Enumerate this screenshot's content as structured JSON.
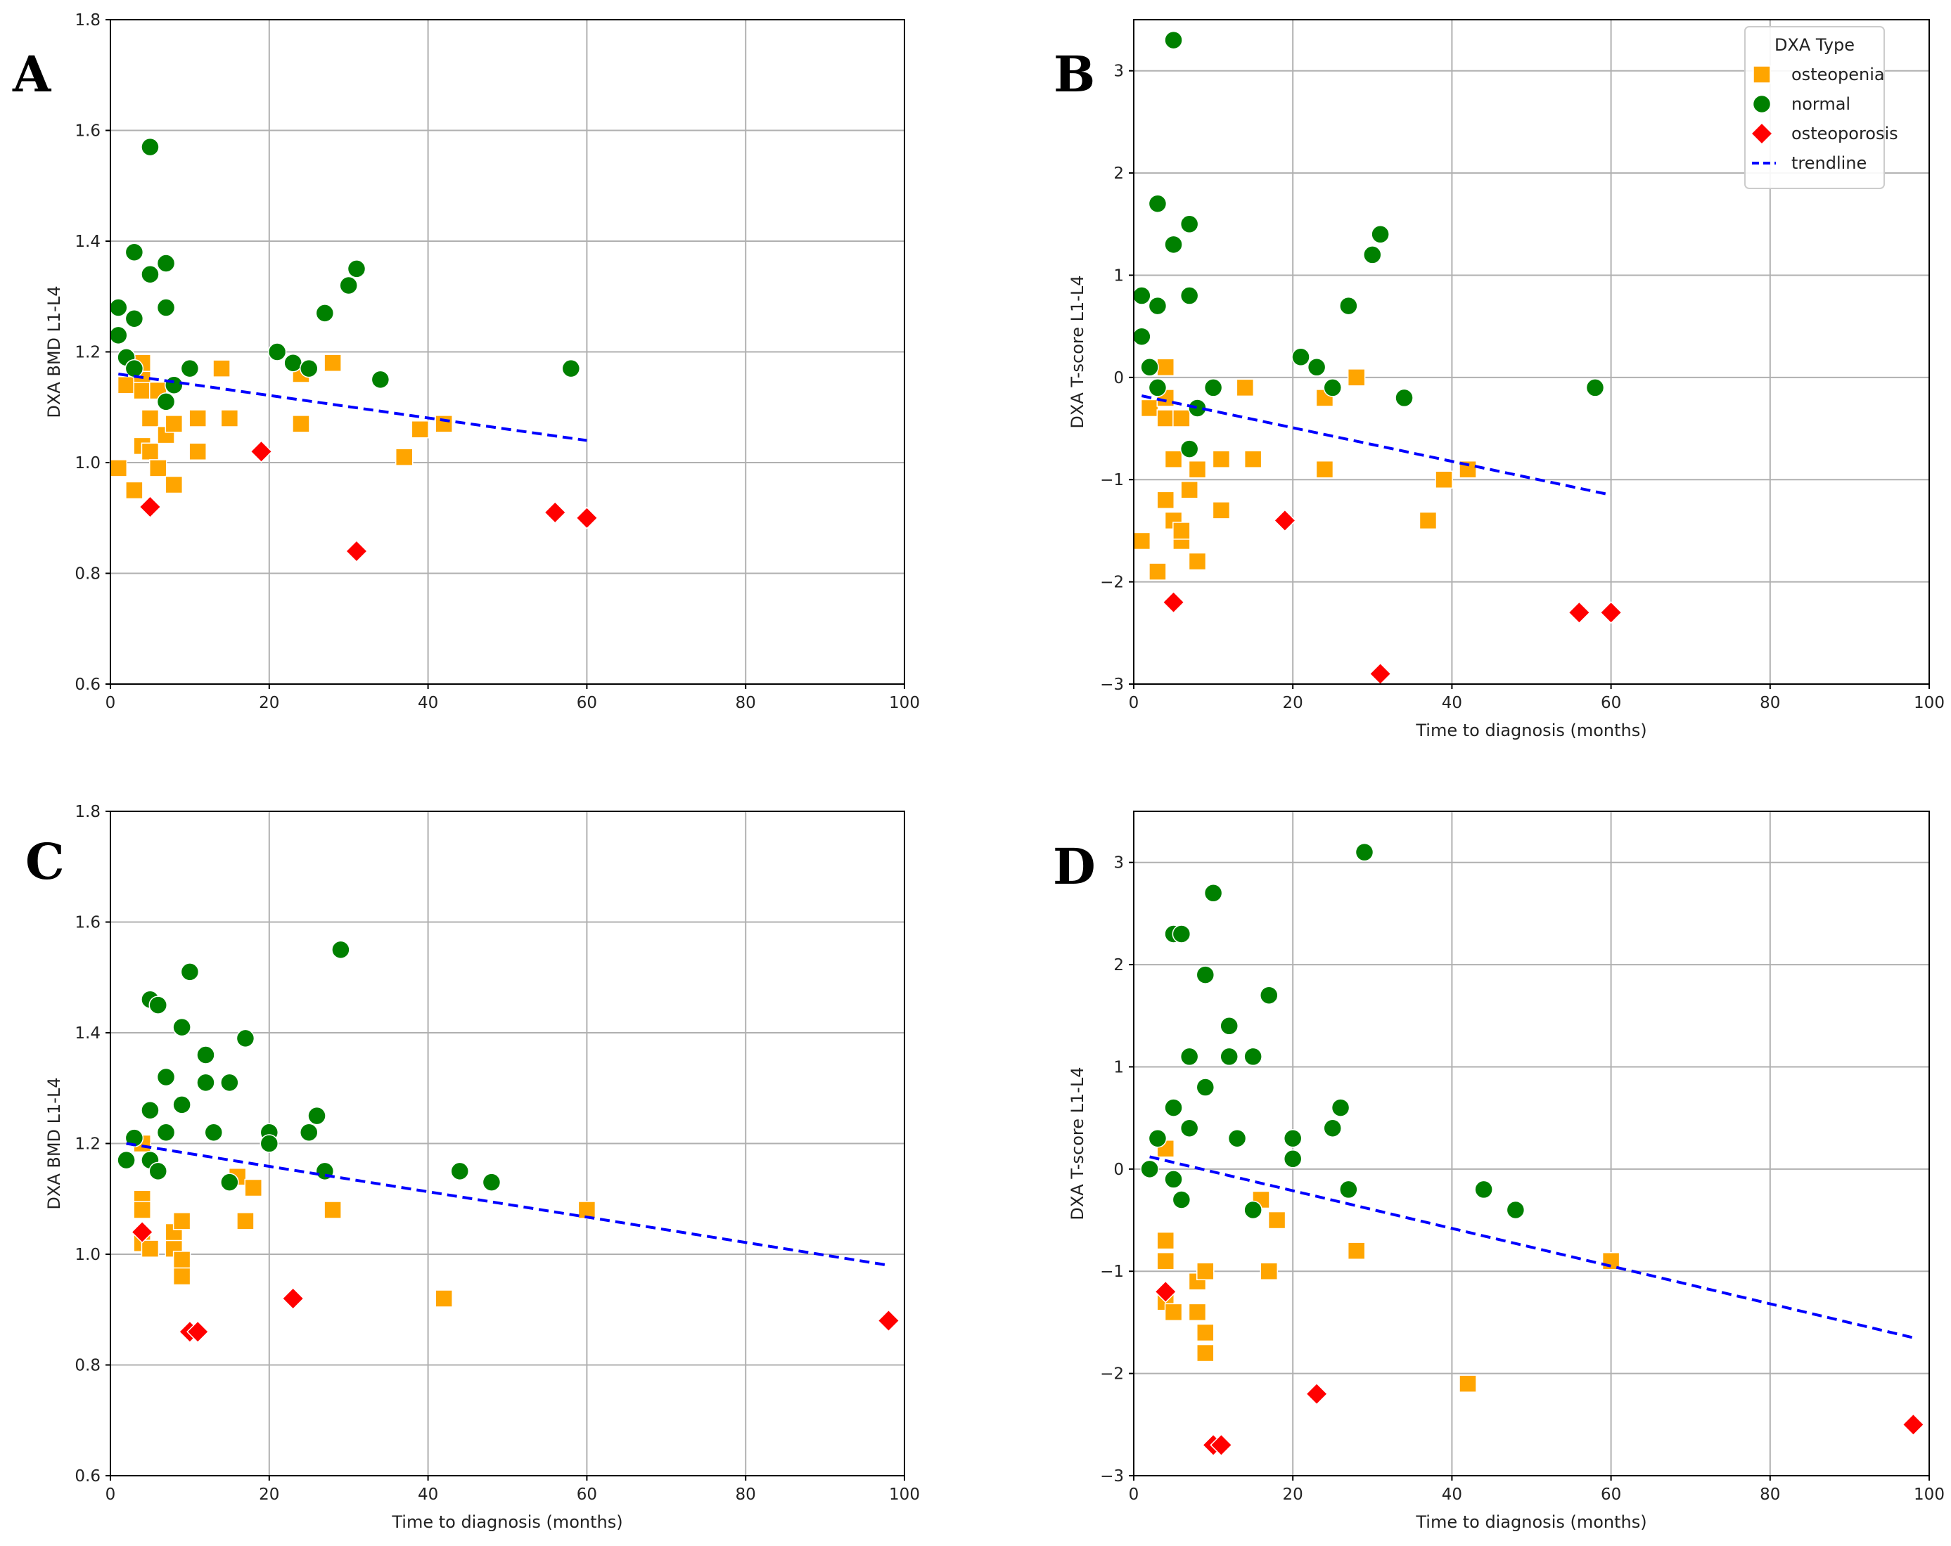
{
  "legend": {
    "title": "DXA Type",
    "entries": [
      {
        "label": "osteopenia",
        "marker": "square",
        "color": "#ffa500"
      },
      {
        "label": "normal",
        "marker": "circle",
        "color": "#008000"
      },
      {
        "label": "osteoporosis",
        "marker": "diamond",
        "color": "#ff0000"
      },
      {
        "label": "trendline",
        "marker": "dashed-line",
        "color": "#0000ff"
      }
    ]
  },
  "chart_data": [
    {
      "panel": "A",
      "type": "scatter",
      "xlabel": "",
      "ylabel": "DXA BMD L1-L4",
      "xlim": [
        0,
        100
      ],
      "ylim": [
        0.6,
        1.8
      ],
      "xticks": [
        "0",
        "20",
        "40",
        "60",
        "80",
        "100"
      ],
      "yticks": [
        "0.6",
        "0.8",
        "1.0",
        "1.2",
        "1.4",
        "1.6",
        "1.8"
      ],
      "grid": true,
      "series": [
        {
          "name": "osteopenia",
          "points": [
            [
              1,
              0.99
            ],
            [
              2,
              1.14
            ],
            [
              3,
              0.95
            ],
            [
              4,
              1.03
            ],
            [
              4,
              1.13
            ],
            [
              4,
              1.16
            ],
            [
              4,
              1.18
            ],
            [
              5,
              1.02
            ],
            [
              5,
              1.08
            ],
            [
              6,
              0.99
            ],
            [
              6,
              1.13
            ],
            [
              7,
              1.05
            ],
            [
              8,
              0.96
            ],
            [
              8,
              1.07
            ],
            [
              11,
              1.08
            ],
            [
              11,
              1.02
            ],
            [
              14,
              1.17
            ],
            [
              15,
              1.08
            ],
            [
              24,
              1.16
            ],
            [
              24,
              1.07
            ],
            [
              28,
              1.18
            ],
            [
              37,
              1.01
            ],
            [
              39,
              1.06
            ],
            [
              42,
              1.07
            ]
          ]
        },
        {
          "name": "normal",
          "points": [
            [
              1,
              1.23
            ],
            [
              1,
              1.28
            ],
            [
              2,
              1.19
            ],
            [
              3,
              1.17
            ],
            [
              3,
              1.26
            ],
            [
              3,
              1.38
            ],
            [
              5,
              1.34
            ],
            [
              5,
              1.57
            ],
            [
              7,
              1.36
            ],
            [
              7,
              1.28
            ],
            [
              7,
              1.11
            ],
            [
              8,
              1.14
            ],
            [
              10,
              1.17
            ],
            [
              21,
              1.2
            ],
            [
              23,
              1.18
            ],
            [
              25,
              1.17
            ],
            [
              27,
              1.27
            ],
            [
              30,
              1.32
            ],
            [
              31,
              1.35
            ],
            [
              34,
              1.15
            ],
            [
              58,
              1.17
            ]
          ]
        },
        {
          "name": "osteoporosis",
          "points": [
            [
              5,
              0.92
            ],
            [
              19,
              1.02
            ],
            [
              31,
              0.84
            ],
            [
              56,
              0.91
            ],
            [
              60,
              0.9
            ]
          ]
        }
      ],
      "trendline": {
        "x": [
          1,
          60
        ],
        "y": [
          1.16,
          1.04
        ]
      }
    },
    {
      "panel": "B",
      "type": "scatter",
      "xlabel": "Time to diagnosis (months)",
      "ylabel": "DXA T-score L1-L4",
      "xlim": [
        0,
        100
      ],
      "ylim": [
        -3,
        3.5
      ],
      "xticks": [
        "0",
        "20",
        "40",
        "60",
        "80",
        "100"
      ],
      "yticks": [
        "−3",
        "−2",
        "−1",
        "0",
        "1",
        "2",
        "3"
      ],
      "grid": true,
      "legend_position": "top-right",
      "series": [
        {
          "name": "osteopenia",
          "points": [
            [
              1,
              -1.6
            ],
            [
              2,
              -0.3
            ],
            [
              3,
              -1.9
            ],
            [
              4,
              -0.4
            ],
            [
              4,
              -0.2
            ],
            [
              4,
              -1.2
            ],
            [
              4,
              0.1
            ],
            [
              5,
              -0.8
            ],
            [
              5,
              -1.4
            ],
            [
              6,
              -1.6
            ],
            [
              6,
              -1.5
            ],
            [
              6,
              -0.4
            ],
            [
              7,
              -1.1
            ],
            [
              8,
              -0.9
            ],
            [
              8,
              -1.8
            ],
            [
              11,
              -0.8
            ],
            [
              11,
              -1.3
            ],
            [
              14,
              -0.1
            ],
            [
              15,
              -0.8
            ],
            [
              24,
              -0.2
            ],
            [
              24,
              -0.9
            ],
            [
              28,
              0.0
            ],
            [
              37,
              -1.4
            ],
            [
              39,
              -1.0
            ],
            [
              42,
              -0.9
            ]
          ]
        },
        {
          "name": "normal",
          "points": [
            [
              1,
              0.8
            ],
            [
              1,
              0.4
            ],
            [
              2,
              0.1
            ],
            [
              3,
              0.7
            ],
            [
              3,
              1.7
            ],
            [
              3,
              -0.1
            ],
            [
              5,
              1.3
            ],
            [
              5,
              3.3
            ],
            [
              7,
              0.8
            ],
            [
              7,
              1.5
            ],
            [
              7,
              -0.7
            ],
            [
              8,
              -0.3
            ],
            [
              10,
              -0.1
            ],
            [
              21,
              0.2
            ],
            [
              23,
              0.1
            ],
            [
              25,
              -0.1
            ],
            [
              27,
              0.7
            ],
            [
              30,
              1.2
            ],
            [
              31,
              1.4
            ],
            [
              34,
              -0.2
            ],
            [
              58,
              -0.1
            ]
          ]
        },
        {
          "name": "osteoporosis",
          "points": [
            [
              5,
              -2.2
            ],
            [
              19,
              -1.4
            ],
            [
              31,
              -2.9
            ],
            [
              56,
              -2.3
            ],
            [
              60,
              -2.3
            ]
          ]
        }
      ],
      "trendline": {
        "x": [
          1,
          60
        ],
        "y": [
          -0.18,
          -1.15
        ]
      }
    },
    {
      "panel": "C",
      "type": "scatter",
      "xlabel": "Time to diagnosis (months)",
      "ylabel": "DXA BMD L1-L4",
      "xlim": [
        0,
        100
      ],
      "ylim": [
        0.6,
        1.8
      ],
      "xticks": [
        "0",
        "20",
        "40",
        "60",
        "80",
        "100"
      ],
      "yticks": [
        "0.6",
        "0.8",
        "1.0",
        "1.2",
        "1.4",
        "1.6",
        "1.8"
      ],
      "grid": true,
      "series": [
        {
          "name": "osteopenia",
          "points": [
            [
              4,
              1.2
            ],
            [
              4,
              1.1
            ],
            [
              4,
              1.08
            ],
            [
              4,
              1.02
            ],
            [
              5,
              1.01
            ],
            [
              8,
              1.01
            ],
            [
              8,
              1.04
            ],
            [
              9,
              0.99
            ],
            [
              9,
              0.96
            ],
            [
              9,
              1.06
            ],
            [
              16,
              1.14
            ],
            [
              17,
              1.06
            ],
            [
              18,
              1.12
            ],
            [
              28,
              1.08
            ],
            [
              42,
              0.92
            ],
            [
              60,
              1.08
            ]
          ]
        },
        {
          "name": "normal",
          "points": [
            [
              2,
              1.17
            ],
            [
              3,
              1.21
            ],
            [
              5,
              1.46
            ],
            [
              5,
              1.26
            ],
            [
              5,
              1.17
            ],
            [
              6,
              1.45
            ],
            [
              6,
              1.15
            ],
            [
              7,
              1.32
            ],
            [
              7,
              1.22
            ],
            [
              9,
              1.41
            ],
            [
              9,
              1.27
            ],
            [
              10,
              1.51
            ],
            [
              12,
              1.36
            ],
            [
              12,
              1.31
            ],
            [
              13,
              1.22
            ],
            [
              15,
              1.31
            ],
            [
              15,
              1.13
            ],
            [
              17,
              1.39
            ],
            [
              20,
              1.22
            ],
            [
              20,
              1.2
            ],
            [
              25,
              1.22
            ],
            [
              26,
              1.25
            ],
            [
              27,
              1.15
            ],
            [
              29,
              1.55
            ],
            [
              44,
              1.15
            ],
            [
              48,
              1.13
            ]
          ]
        },
        {
          "name": "osteoporosis",
          "points": [
            [
              4,
              1.04
            ],
            [
              10,
              0.86
            ],
            [
              11,
              0.86
            ],
            [
              23,
              0.92
            ],
            [
              98,
              0.88
            ]
          ]
        }
      ],
      "trendline": {
        "x": [
          2,
          98
        ],
        "y": [
          1.2,
          0.98
        ]
      }
    },
    {
      "panel": "D",
      "type": "scatter",
      "xlabel": "Time to diagnosis (months)",
      "ylabel": "DXA T-score L1-L4",
      "xlim": [
        0,
        100
      ],
      "ylim": [
        -3,
        3.5
      ],
      "xticks": [
        "0",
        "20",
        "40",
        "60",
        "80",
        "100"
      ],
      "yticks": [
        "−3",
        "−2",
        "−1",
        "0",
        "1",
        "2",
        "3"
      ],
      "grid": true,
      "series": [
        {
          "name": "osteopenia",
          "points": [
            [
              4,
              0.2
            ],
            [
              4,
              -0.7
            ],
            [
              4,
              -0.9
            ],
            [
              4,
              -1.3
            ],
            [
              5,
              -1.4
            ],
            [
              8,
              -1.1
            ],
            [
              8,
              -1.4
            ],
            [
              9,
              -1.0
            ],
            [
              9,
              -1.6
            ],
            [
              9,
              -1.8
            ],
            [
              16,
              -0.3
            ],
            [
              17,
              -1.0
            ],
            [
              18,
              -0.5
            ],
            [
              28,
              -0.8
            ],
            [
              42,
              -2.1
            ],
            [
              60,
              -0.9
            ]
          ]
        },
        {
          "name": "normal",
          "points": [
            [
              2,
              0.0
            ],
            [
              3,
              0.3
            ],
            [
              5,
              2.3
            ],
            [
              5,
              0.6
            ],
            [
              5,
              -0.1
            ],
            [
              6,
              2.3
            ],
            [
              6,
              -0.3
            ],
            [
              7,
              1.1
            ],
            [
              7,
              0.4
            ],
            [
              9,
              1.9
            ],
            [
              9,
              0.8
            ],
            [
              10,
              2.7
            ],
            [
              12,
              1.4
            ],
            [
              12,
              1.1
            ],
            [
              13,
              0.3
            ],
            [
              15,
              1.1
            ],
            [
              15,
              -0.4
            ],
            [
              17,
              1.7
            ],
            [
              20,
              0.3
            ],
            [
              20,
              0.1
            ],
            [
              25,
              0.4
            ],
            [
              26,
              0.6
            ],
            [
              27,
              -0.2
            ],
            [
              29,
              3.1
            ],
            [
              44,
              -0.2
            ],
            [
              48,
              -0.4
            ]
          ]
        },
        {
          "name": "osteoporosis",
          "points": [
            [
              4,
              -1.2
            ],
            [
              10,
              -2.7
            ],
            [
              11,
              -2.7
            ],
            [
              23,
              -2.2
            ],
            [
              98,
              -2.5
            ]
          ]
        }
      ],
      "trendline": {
        "x": [
          2,
          98
        ],
        "y": [
          0.12,
          -1.65
        ]
      }
    }
  ]
}
